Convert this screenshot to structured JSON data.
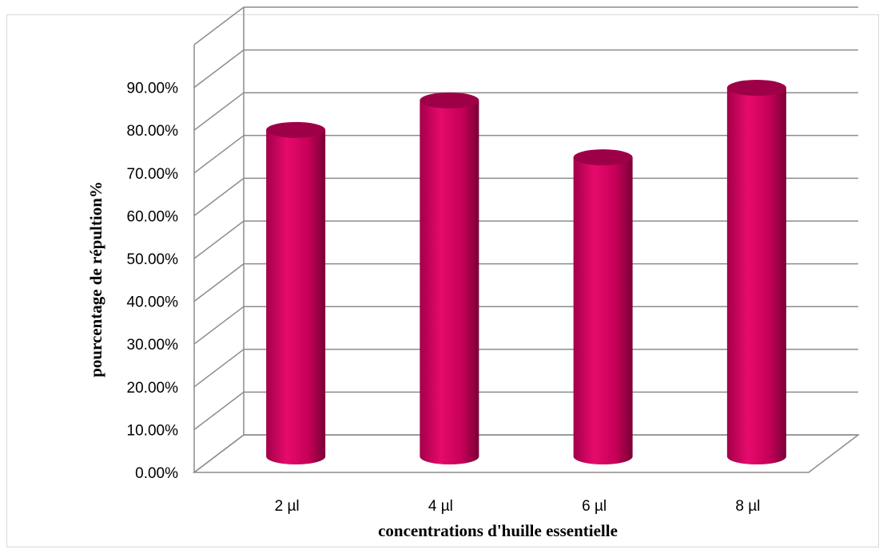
{
  "chart_data": {
    "type": "bar",
    "style": "3d-cylinder",
    "categories": [
      "2 µl",
      "4 µl",
      "6 µl",
      "8 µl"
    ],
    "series": [
      {
        "values": [
          0.775,
          0.845,
          0.71,
          0.875
        ]
      }
    ],
    "title": "",
    "xlabel": "concentrations d'huille essentielle",
    "ylabel": "pourcentage de répultion%",
    "ylim": [
      0,
      0.9
    ],
    "yticks": [
      0,
      0.1,
      0.2,
      0.3,
      0.4,
      0.5,
      0.6,
      0.7,
      0.8,
      0.9
    ],
    "ytick_labels": [
      "0.00%",
      "10.00%",
      "20.00%",
      "30.00%",
      "40.00%",
      "50.00%",
      "60.00%",
      "70.00%",
      "80.00%",
      "90.00%"
    ],
    "grid": true,
    "legend": "none",
    "bar_color": "#d6005f"
  }
}
